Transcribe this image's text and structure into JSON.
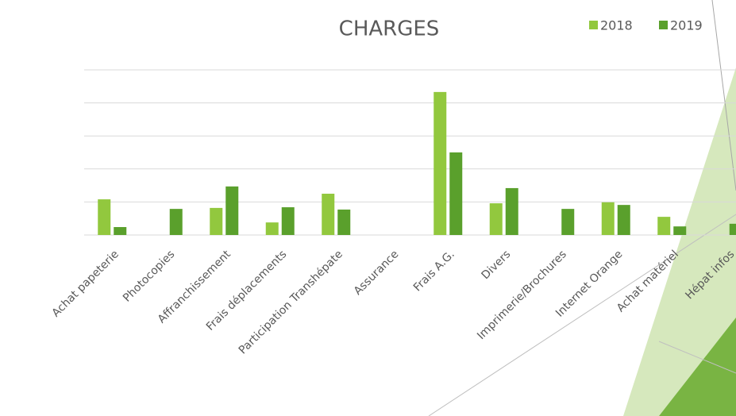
{
  "chart_data": {
    "type": "bar",
    "title": "CHARGES",
    "categories": [
      "Achat papeterie",
      "Photocopies",
      "Affranchissement",
      "Frais déplacements",
      "Participation Transhépate",
      "Assurance",
      "Frais A.G.",
      "Divers",
      "Imprimerie/Brochures",
      "Internet Orange",
      "Achat matériel",
      "Hépat infos"
    ],
    "series": [
      {
        "name": "2018",
        "color": "#92c83e",
        "values": [
          1.08,
          0,
          0.82,
          0.38,
          1.25,
          0,
          4.33,
          0.96,
          0,
          0.99,
          0.55,
          0
        ]
      },
      {
        "name": "2019",
        "color": "#5aa02c",
        "values": [
          0.24,
          0.79,
          1.47,
          0.84,
          0.77,
          0,
          2.5,
          1.42,
          0.79,
          0.91,
          0.26,
          0.34
        ]
      }
    ],
    "ylim": [
      0,
      5
    ],
    "yticks": [
      0,
      1,
      2,
      3,
      4,
      5
    ],
    "grid": true,
    "legend": "top-right"
  }
}
